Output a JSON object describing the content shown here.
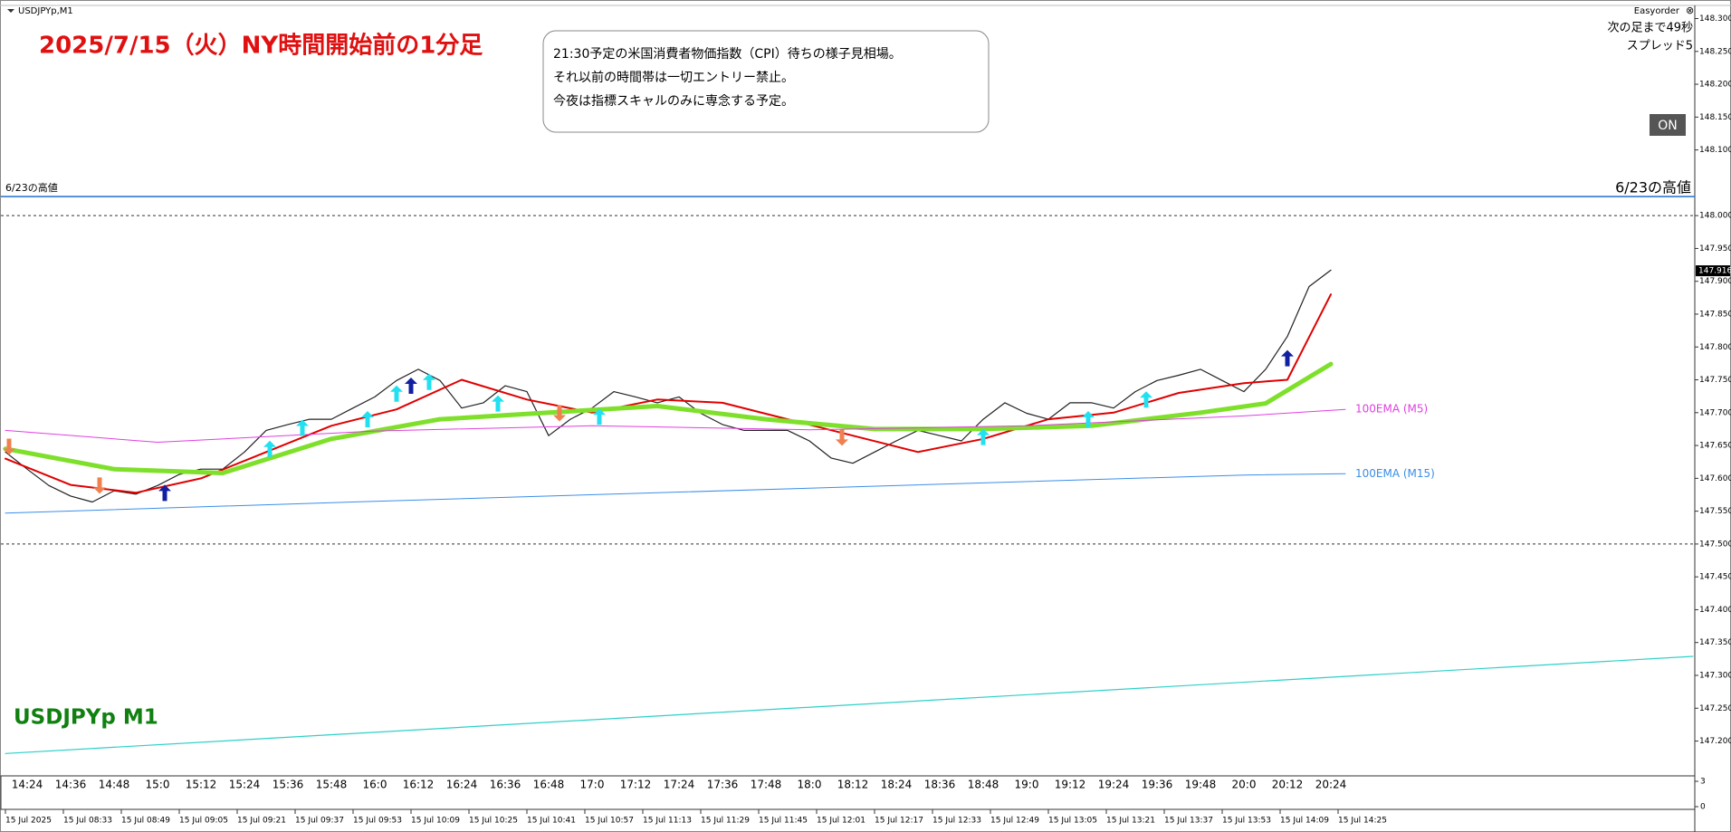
{
  "chart_data": {
    "type": "line",
    "window_title": "USDJPYp,M1",
    "title": "2025/7/15（火）NY時間開始前の1分足",
    "symbol_label": "USDJPYp M1",
    "note_lines": [
      "21:30予定の米国消費者物価指数（CPI）待ちの様子見相場。",
      "それ以前の時間帯は一切エントリー禁止。",
      "今夜は指標スキャルのみに専念する予定。"
    ],
    "panel_name": "Easyorder",
    "panel_close": "⊗",
    "next_bar": "次の足まで49秒",
    "spread": "スプレッド5",
    "button": "ON",
    "ylim": [
      147.147,
      148.32
    ],
    "yticks": [
      {
        "value": 148.3,
        "label": "148.300"
      },
      {
        "value": 148.25,
        "label": "148.250"
      },
      {
        "value": 148.2,
        "label": "148.200"
      },
      {
        "value": 148.15,
        "label": "148.150"
      },
      {
        "value": 148.1,
        "label": "148.100"
      },
      {
        "value": 148.0,
        "label": "148.000"
      },
      {
        "value": 147.95,
        "label": "147.950"
      },
      {
        "value": 147.9,
        "label": "147.900"
      },
      {
        "value": 147.85,
        "label": "147.850"
      },
      {
        "value": 147.8,
        "label": "147.800"
      },
      {
        "value": 147.75,
        "label": "147.750"
      },
      {
        "value": 147.7,
        "label": "147.700"
      },
      {
        "value": 147.65,
        "label": "147.650"
      },
      {
        "value": 147.6,
        "label": "147.600"
      },
      {
        "value": 147.55,
        "label": "147.550"
      },
      {
        "value": 147.5,
        "label": "147.500"
      },
      {
        "value": 147.45,
        "label": "147.450"
      },
      {
        "value": 147.4,
        "label": "147.400"
      },
      {
        "value": 147.35,
        "label": "147.350"
      },
      {
        "value": 147.3,
        "label": "147.300"
      },
      {
        "value": 147.25,
        "label": "147.250"
      },
      {
        "value": 147.2,
        "label": "147.200"
      }
    ],
    "last_price": {
      "value": 147.916,
      "label": "147.916"
    },
    "xticks": [
      "14:24",
      "14:36",
      "14:48",
      "15:0",
      "15:12",
      "15:24",
      "15:36",
      "15:48",
      "16:0",
      "16:12",
      "16:24",
      "16:36",
      "16:48",
      "17:0",
      "17:12",
      "17:24",
      "17:36",
      "17:48",
      "18:0",
      "18:12",
      "18:24",
      "18:36",
      "18:48",
      "19:0",
      "19:12",
      "19:24",
      "19:36",
      "19:48",
      "20:0",
      "20:12",
      "20:24"
    ],
    "xticks2": [
      "15 Jul 2025",
      "15 Jul 08:33",
      "15 Jul 08:49",
      "15 Jul 09:05",
      "15 Jul 09:21",
      "15 Jul 09:37",
      "15 Jul 09:53",
      "15 Jul 10:09",
      "15 Jul 10:25",
      "15 Jul 10:41",
      "15 Jul 10:57",
      "15 Jul 11:13",
      "15 Jul 11:29",
      "15 Jul 11:45",
      "15 Jul 12:01",
      "15 Jul 12:17",
      "15 Jul 12:33",
      "15 Jul 12:49",
      "15 Jul 13:05",
      "15 Jul 13:21",
      "15 Jul 13:37",
      "15 Jul 13:53",
      "15 Jul 14:09",
      "15 Jul 14:25"
    ],
    "sub_ylim": [
      0,
      3
    ],
    "sub_yticks": [
      3,
      0
    ],
    "series": [
      {
        "color": "#222222",
        "width": 1.2,
        "x": [
          "14:18",
          "14:24",
          "14:30",
          "14:36",
          "14:42",
          "14:48",
          "14:54",
          "15:00",
          "15:06",
          "15:12",
          "15:18",
          "15:24",
          "15:30",
          "15:36",
          "15:42",
          "15:48",
          "15:54",
          "16:00",
          "16:06",
          "16:12",
          "16:18",
          "16:24",
          "16:30",
          "16:36",
          "16:42",
          "16:48",
          "16:54",
          "17:00",
          "17:06",
          "17:12",
          "17:18",
          "17:24",
          "17:30",
          "17:36",
          "17:42",
          "17:48",
          "17:54",
          "18:00",
          "18:06",
          "18:12",
          "18:18",
          "18:24",
          "18:30",
          "18:36",
          "18:42",
          "18:48",
          "18:54",
          "19:00",
          "19:06",
          "19:12",
          "19:18",
          "19:24",
          "19:30",
          "19:36",
          "19:42",
          "19:48",
          "19:54",
          "20:00",
          "20:06",
          "20:12",
          "20:18",
          "20:24"
        ],
        "values": [
          147.64,
          147.614,
          147.589,
          147.573,
          147.564,
          147.581,
          147.576,
          147.589,
          147.606,
          147.614,
          147.614,
          147.64,
          147.673,
          147.682,
          147.69,
          147.69,
          147.707,
          147.724,
          147.749,
          147.766,
          147.749,
          147.707,
          147.715,
          147.741,
          147.732,
          147.665,
          147.69,
          147.707,
          147.732,
          147.724,
          147.715,
          147.724,
          147.699,
          147.682,
          147.673,
          147.673,
          147.673,
          147.657,
          147.631,
          147.623,
          147.64,
          147.657,
          147.673,
          147.665,
          147.657,
          147.69,
          147.715,
          147.699,
          147.69,
          147.715,
          147.715,
          147.707,
          147.732,
          147.749,
          147.757,
          147.766,
          147.749,
          147.732,
          147.766,
          147.816,
          147.892,
          147.917
        ]
      },
      {
        "color": "#e00000",
        "width": 2,
        "x": [
          "14:18",
          "14:36",
          "14:54",
          "15:12",
          "15:30",
          "15:48",
          "16:06",
          "16:24",
          "16:42",
          "17:00",
          "17:18",
          "17:36",
          "17:54",
          "18:12",
          "18:30",
          "18:48",
          "19:06",
          "19:24",
          "19:42",
          "20:00",
          "20:12",
          "20:24"
        ],
        "values": [
          147.63,
          147.59,
          147.578,
          147.6,
          147.64,
          147.68,
          147.705,
          147.75,
          147.72,
          147.7,
          147.72,
          147.715,
          147.69,
          147.665,
          147.64,
          147.66,
          147.69,
          147.7,
          147.73,
          147.745,
          147.75,
          147.88
        ]
      },
      {
        "color": "#7ee02a",
        "width": 5,
        "x": [
          "14:18",
          "14:48",
          "15:18",
          "15:48",
          "16:18",
          "16:48",
          "17:18",
          "17:48",
          "18:18",
          "18:48",
          "19:18",
          "19:48",
          "20:06",
          "20:24"
        ],
        "values": [
          147.645,
          147.614,
          147.608,
          147.66,
          147.69,
          147.7,
          147.71,
          147.69,
          147.675,
          147.675,
          147.68,
          147.7,
          147.714,
          147.774
        ]
      },
      {
        "name": "100EMA (M5)",
        "color": "#e040e0",
        "width": 1,
        "x": [
          "14:18",
          "15:00",
          "16:00",
          "17:00",
          "18:00",
          "19:00",
          "20:00",
          "20:28"
        ],
        "values": [
          147.673,
          147.655,
          147.672,
          147.68,
          147.674,
          147.68,
          147.695,
          147.705
        ]
      },
      {
        "name": "100EMA (M15)",
        "color": "#3a8ee8",
        "width": 1,
        "x": [
          "14:18",
          "16:00",
          "18:00",
          "20:00",
          "20:28"
        ],
        "values": [
          147.547,
          147.565,
          147.585,
          147.605,
          147.607
        ]
      },
      {
        "color": "#2ed0c8",
        "width": 1.2,
        "x": [
          "14:18",
          "22:04"
        ],
        "values": [
          147.181,
          147.329
        ]
      }
    ],
    "hlines": [
      {
        "value": 148.029,
        "color": "#1e6fd0",
        "label_left": "6/23の高値",
        "label_right": "6/23の高値"
      },
      {
        "value": 148.0,
        "color": "#333333",
        "dashed": true
      },
      {
        "value": 147.5,
        "color": "#333333",
        "dashed": true
      }
    ],
    "signals": [
      {
        "color": "#22e0f0",
        "dir": "up",
        "x": [
          "15:31",
          "15:40",
          "15:58",
          "16:06",
          "16:15",
          "16:34",
          "17:02",
          "18:48",
          "19:17",
          "19:33"
        ],
        "values": [
          147.645,
          147.677,
          147.69,
          147.729,
          147.747,
          147.714,
          147.694,
          147.663,
          147.69,
          147.72
        ]
      },
      {
        "color": "#f08050",
        "dir": "down",
        "x": [
          "14:19",
          "14:44",
          "16:51",
          "18:09"
        ],
        "values": [
          147.648,
          147.589,
          147.699,
          147.662
        ]
      },
      {
        "color": "#1020a0",
        "dir": "up",
        "x": [
          "15:02",
          "16:10",
          "20:12"
        ],
        "values": [
          147.578,
          147.741,
          147.783
        ]
      }
    ]
  }
}
